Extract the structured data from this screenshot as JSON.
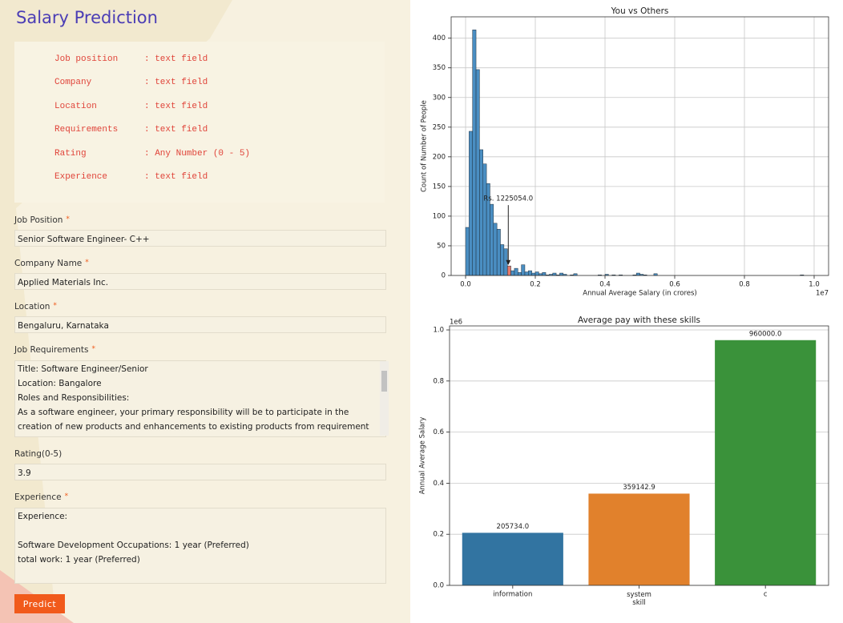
{
  "form": {
    "title": "Salary Prediction",
    "instructions": [
      {
        "field": "Job position",
        "hint": ": text field"
      },
      {
        "field": "Company",
        "hint": ": text field"
      },
      {
        "field": "Location",
        "hint": ": text field"
      },
      {
        "field": "Requirements",
        "hint": ": text field"
      },
      {
        "field": "Rating",
        "hint": ": Any Number (0 - 5)"
      },
      {
        "field": "Experience",
        "hint": ": text field"
      }
    ],
    "fields": [
      {
        "label": "Job Position",
        "required_mark": "*",
        "value": "Senior Software Engineer- C++"
      },
      {
        "label": "Company Name",
        "required_mark": "*",
        "value": "Applied Materials Inc."
      },
      {
        "label": "Location",
        "required_mark": "*",
        "value": "Bengaluru, Karnataka"
      },
      {
        "label": "Job Requirements",
        "required_mark": "*",
        "value": "Title: Software Engineer/Senior\nLocation: Bangalore\nRoles and Responsibilities:\nAs a software engineer, your primary responsibility will be to participate in the creation of new products and enhancements to existing products from requirement to launch as part of"
      },
      {
        "label": "Rating(0-5)",
        "value": "3.9"
      },
      {
        "label": "Experience",
        "required_mark": "*",
        "value": "Experience:\n\nSoftware Development Occupations: 1 year (Preferred)\ntotal work: 1 year (Preferred)"
      }
    ],
    "button": "Predict"
  },
  "chart_data": [
    {
      "type": "histogram",
      "title": "You vs Others",
      "xlabel": "Annual Average Salary (in crores)",
      "ylabel": "Count of Number of People",
      "bins": [
        0,
        100000,
        200000,
        300000,
        400000,
        500000,
        600000,
        700000,
        800000,
        900000,
        1000000,
        1100000,
        1200000,
        1300000,
        1400000,
        1500000,
        1600000,
        1700000,
        1800000,
        1900000,
        2000000,
        2100000,
        2200000,
        2300000,
        2400000,
        2500000,
        2600000,
        2700000,
        2800000,
        2900000,
        3000000,
        3100000,
        3200000,
        3300000,
        3400000,
        3500000,
        3600000,
        3700000,
        3800000,
        3900000,
        4000000,
        4100000,
        4200000,
        4300000,
        4400000,
        4500000,
        4600000,
        4700000,
        4800000,
        4900000,
        5000000,
        5100000,
        5200000,
        5300000,
        5400000,
        5500000,
        5600000,
        5700000,
        5800000,
        5900000,
        6000000,
        6100000,
        6200000,
        6300000,
        6400000,
        6500000,
        6600000,
        6700000,
        6800000,
        6900000,
        7000000,
        7100000,
        7200000,
        7300000,
        7400000,
        7500000,
        7600000,
        7700000,
        7800000,
        7900000,
        8000000,
        8100000,
        8200000,
        8300000,
        8400000,
        8500000,
        8600000,
        8700000,
        8800000,
        8900000,
        9000000,
        9100000,
        9200000,
        9300000,
        9400000,
        9500000,
        9600000,
        9700000,
        9800000,
        9900000,
        10000000
      ],
      "counts": [
        81,
        243,
        414,
        347,
        212,
        188,
        155,
        120,
        88,
        78,
        52,
        45,
        16,
        8,
        12,
        5,
        18,
        6,
        8,
        4,
        6,
        3,
        5,
        1,
        2,
        4,
        1,
        4,
        2,
        0,
        1,
        3,
        0,
        0,
        0,
        0,
        0,
        0,
        1,
        0,
        2,
        0,
        1,
        0,
        1,
        0,
        0,
        0,
        1,
        4,
        2,
        1,
        0,
        0,
        3,
        0,
        0,
        0,
        0,
        0,
        0,
        0,
        0,
        0,
        0,
        0,
        0,
        0,
        0,
        0,
        0,
        0,
        0,
        0,
        0,
        0,
        0,
        0,
        0,
        0,
        0,
        0,
        0,
        0,
        0,
        0,
        0,
        0,
        0,
        0,
        0,
        0,
        0,
        0,
        0,
        0,
        1,
        0,
        0,
        0
      ],
      "color": "#4a8ec2",
      "highlight_color": "#e5796a",
      "annotation": {
        "text": "Rs. 1225054.0",
        "x": 1225054,
        "y": 16
      },
      "xlim": [
        -414000,
        10414000
      ],
      "xticks": [
        {
          "value": 0,
          "label": "0.0"
        },
        {
          "value": 2000000,
          "label": "0.2"
        },
        {
          "value": 4000000,
          "label": "0.4"
        },
        {
          "value": 6000000,
          "label": "0.6"
        },
        {
          "value": 8000000,
          "label": "0.8"
        },
        {
          "value": 10000000,
          "label": "1.0"
        }
      ],
      "x_offset_text": "1e7",
      "ylim": [
        0,
        436
      ],
      "yticks": [
        0,
        50,
        100,
        150,
        200,
        250,
        300,
        350,
        400
      ],
      "grid": "both"
    },
    {
      "type": "bar",
      "title": "Average pay with these skills",
      "ylabel": "Annual Average Salary",
      "categories": [
        "information",
        "system\nskill",
        "c"
      ],
      "values": [
        205734,
        359142.9,
        960000
      ],
      "value_labels": [
        "205734.0",
        "359142.9",
        "960000.0"
      ],
      "colors": [
        "#3274a1",
        "#e1812c",
        "#3a923a"
      ],
      "ylim": [
        0,
        1015700
      ],
      "yticks": [
        {
          "value": 0,
          "label": "0.0"
        },
        {
          "value": 200000,
          "label": "0.2"
        },
        {
          "value": 400000,
          "label": "0.4"
        },
        {
          "value": 600000,
          "label": "0.6"
        },
        {
          "value": 800000,
          "label": "0.8"
        },
        {
          "value": 1000000,
          "label": "1.0"
        }
      ],
      "y_offset_text": "1e6",
      "grid": "y"
    }
  ]
}
